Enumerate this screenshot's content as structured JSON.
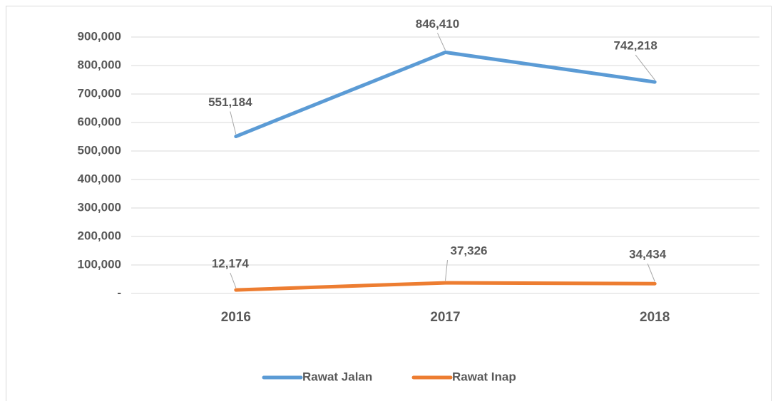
{
  "chart_data": {
    "type": "line",
    "categories": [
      "2016",
      "2017",
      "2018"
    ],
    "series": [
      {
        "name": "Rawat Jalan",
        "color": "#5b9bd5",
        "values": [
          551184,
          846410,
          742218
        ],
        "value_labels": [
          "551,184",
          "846,410",
          "742,218"
        ]
      },
      {
        "name": "Rawat Inap",
        "color": "#ed7d31",
        "values": [
          12174,
          37326,
          34434
        ],
        "value_labels": [
          "12,174",
          "37,326",
          "34,434"
        ]
      }
    ],
    "ylim": [
      0,
      900000
    ],
    "yticks": [
      {
        "value": 0,
        "label": "-"
      },
      {
        "value": 100000,
        "label": "100,000"
      },
      {
        "value": 200000,
        "label": "200,000"
      },
      {
        "value": 300000,
        "label": "300,000"
      },
      {
        "value": 400000,
        "label": "400,000"
      },
      {
        "value": 500000,
        "label": "500,000"
      },
      {
        "value": 600000,
        "label": "600,000"
      },
      {
        "value": 700000,
        "label": "700,000"
      },
      {
        "value": 800000,
        "label": "800,000"
      },
      {
        "value": 900000,
        "label": "900,000"
      }
    ],
    "grid": true,
    "legend": "bottom"
  }
}
